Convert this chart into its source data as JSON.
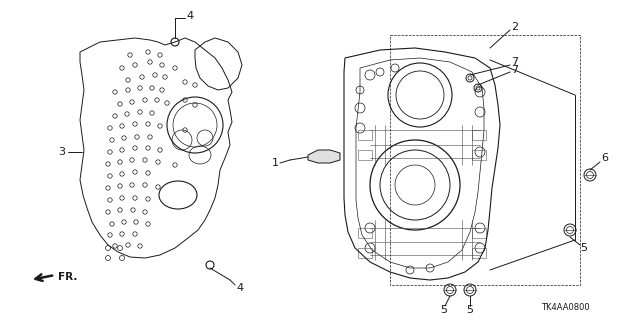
{
  "figsize": [
    6.4,
    3.2
  ],
  "dpi": 100,
  "bg_color": "#ffffff",
  "part_number": "TK4AA0800",
  "black": "#1a1a1a",
  "lw": 0.7
}
